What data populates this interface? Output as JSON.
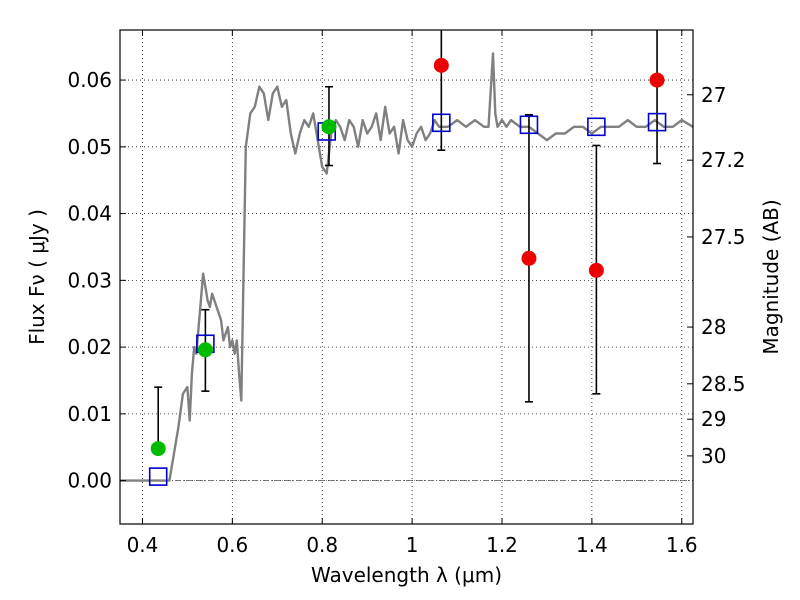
{
  "chart_data": {
    "type": "scatter",
    "xlabel": "Wavelength  λ (μm)",
    "ylabel": "Flux  Fν  ( μJy )",
    "ylabel_right": "Magnitude (AB)",
    "xlim": [
      0.35,
      1.625
    ],
    "ylim": [
      -0.0065,
      0.0675
    ],
    "x_ticks": [
      0.4,
      0.6,
      0.8,
      1.0,
      1.2,
      1.4,
      1.6
    ],
    "x_tick_labels": [
      "0.4",
      "0.6",
      "0.8",
      "1",
      "1.2",
      "1.4",
      "1.6"
    ],
    "y_ticks": [
      0.0,
      0.01,
      0.02,
      0.03,
      0.04,
      0.05,
      0.06
    ],
    "y_tick_labels": [
      "0.00",
      "0.01",
      "0.02",
      "0.03",
      "0.04",
      "0.05",
      "0.06"
    ],
    "right_ticks": [
      {
        "label": "27",
        "flux": 0.0578
      },
      {
        "label": "27.2",
        "flux": 0.048
      },
      {
        "label": "27.5",
        "flux": 0.0365
      },
      {
        "label": "28",
        "flux": 0.023
      },
      {
        "label": "28.5",
        "flux": 0.0145
      },
      {
        "label": "29",
        "flux": 0.0092
      },
      {
        "label": "30",
        "flux": 0.0037
      }
    ],
    "grid": true,
    "series": [
      {
        "kind": "line",
        "color": "#808080",
        "x": [
          0.35,
          0.46,
          0.47,
          0.48,
          0.49,
          0.5,
          0.505,
          0.51,
          0.515,
          0.52,
          0.525,
          0.53,
          0.535,
          0.54,
          0.545,
          0.55,
          0.555,
          0.56,
          0.565,
          0.57,
          0.575,
          0.58,
          0.585,
          0.59,
          0.595,
          0.6,
          0.605,
          0.61,
          0.615,
          0.62,
          0.63,
          0.64,
          0.65,
          0.66,
          0.67,
          0.68,
          0.69,
          0.7,
          0.71,
          0.72,
          0.73,
          0.74,
          0.75,
          0.76,
          0.77,
          0.78,
          0.79,
          0.8,
          0.81,
          0.82,
          0.83,
          0.84,
          0.85,
          0.86,
          0.87,
          0.88,
          0.89,
          0.9,
          0.91,
          0.92,
          0.93,
          0.94,
          0.95,
          0.96,
          0.97,
          0.98,
          0.99,
          1.0,
          1.01,
          1.02,
          1.03,
          1.04,
          1.05,
          1.06,
          1.08,
          1.1,
          1.12,
          1.14,
          1.16,
          1.17,
          1.18,
          1.185,
          1.19,
          1.2,
          1.21,
          1.22,
          1.24,
          1.26,
          1.28,
          1.3,
          1.32,
          1.34,
          1.36,
          1.38,
          1.4,
          1.42,
          1.44,
          1.46,
          1.48,
          1.5,
          1.52,
          1.54,
          1.56,
          1.58,
          1.6,
          1.625
        ],
        "y": [
          0.0,
          0.0,
          0.004,
          0.008,
          0.013,
          0.014,
          0.009,
          0.016,
          0.02,
          0.019,
          0.023,
          0.027,
          0.031,
          0.029,
          0.027,
          0.026,
          0.028,
          0.027,
          0.026,
          0.025,
          0.024,
          0.021,
          0.022,
          0.023,
          0.02,
          0.021,
          0.019,
          0.021,
          0.016,
          0.012,
          0.05,
          0.055,
          0.056,
          0.059,
          0.058,
          0.054,
          0.058,
          0.059,
          0.056,
          0.057,
          0.052,
          0.049,
          0.052,
          0.054,
          0.053,
          0.055,
          0.051,
          0.047,
          0.046,
          0.052,
          0.054,
          0.053,
          0.051,
          0.054,
          0.053,
          0.05,
          0.054,
          0.052,
          0.053,
          0.055,
          0.051,
          0.056,
          0.052,
          0.053,
          0.049,
          0.054,
          0.051,
          0.05,
          0.052,
          0.053,
          0.051,
          0.052,
          0.054,
          0.053,
          0.053,
          0.054,
          0.053,
          0.054,
          0.053,
          0.053,
          0.064,
          0.055,
          0.053,
          0.054,
          0.053,
          0.054,
          0.053,
          0.053,
          0.052,
          0.051,
          0.052,
          0.052,
          0.053,
          0.053,
          0.052,
          0.053,
          0.053,
          0.053,
          0.054,
          0.053,
          0.053,
          0.054,
          0.053,
          0.053,
          0.054,
          0.053
        ]
      },
      {
        "kind": "points",
        "marker": "square",
        "color": "#0000cc",
        "x": [
          0.435,
          0.54,
          0.81,
          1.065,
          1.26,
          1.41,
          1.545
        ],
        "y": [
          0.0006,
          0.0205,
          0.0523,
          0.0536,
          0.0533,
          0.053,
          0.0537
        ]
      },
      {
        "kind": "points",
        "marker": "circle",
        "color": "#00bb00",
        "x": [
          0.435,
          0.54,
          0.815
        ],
        "y": [
          0.0048,
          0.0196,
          0.053
        ],
        "yerr_low": [
          0.0045,
          0.0134,
          0.0472
        ],
        "yerr_high": [
          0.014,
          0.0256,
          0.059
        ]
      },
      {
        "kind": "points",
        "marker": "circle",
        "color": "#ee0000",
        "x": [
          1.065,
          1.26,
          1.41,
          1.545
        ],
        "y": [
          0.0622,
          0.0333,
          0.0315,
          0.06
        ],
        "yerr_low": [
          0.0495,
          0.0118,
          0.013,
          0.0475
        ],
        "yerr_high": [
          0.0675,
          0.0548,
          0.0502,
          0.0675
        ]
      }
    ]
  }
}
